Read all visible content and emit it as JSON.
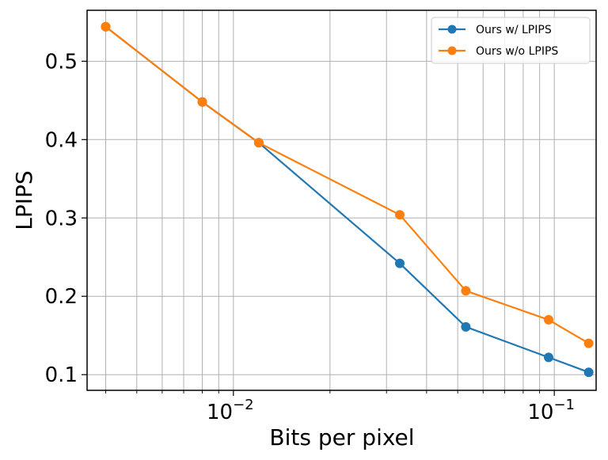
{
  "chart_data": {
    "type": "line",
    "xlabel": "Bits per pixel",
    "ylabel": "LPIPS",
    "xscale": "log",
    "xlim": [
      0.0035,
      0.135
    ],
    "ylim": [
      0.08,
      0.565
    ],
    "grid": true,
    "grid_minor_x": true,
    "legend_position": "top-right",
    "x_ticks": [
      {
        "value": 0.01,
        "base": "10",
        "exp": "−2"
      },
      {
        "value": 0.1,
        "base": "10",
        "exp": "−1"
      }
    ],
    "y_ticks": [
      {
        "value": 0.1,
        "label": "0.1"
      },
      {
        "value": 0.2,
        "label": "0.2"
      },
      {
        "value": 0.3,
        "label": "0.3"
      },
      {
        "value": 0.4,
        "label": "0.4"
      },
      {
        "value": 0.5,
        "label": "0.5"
      }
    ],
    "series": [
      {
        "name": "Ours w/ LPIPS",
        "color": "#1f77b4",
        "x": [
          0.004,
          0.008,
          0.012,
          0.033,
          0.053,
          0.096,
          0.128
        ],
        "y": [
          0.544,
          0.448,
          0.396,
          0.242,
          0.161,
          0.122,
          0.103
        ]
      },
      {
        "name": "Ours w/o LPIPS",
        "color": "#ff7f0e",
        "x": [
          0.004,
          0.008,
          0.012,
          0.033,
          0.053,
          0.096,
          0.128
        ],
        "y": [
          0.544,
          0.448,
          0.396,
          0.304,
          0.207,
          0.17,
          0.14
        ]
      }
    ]
  }
}
